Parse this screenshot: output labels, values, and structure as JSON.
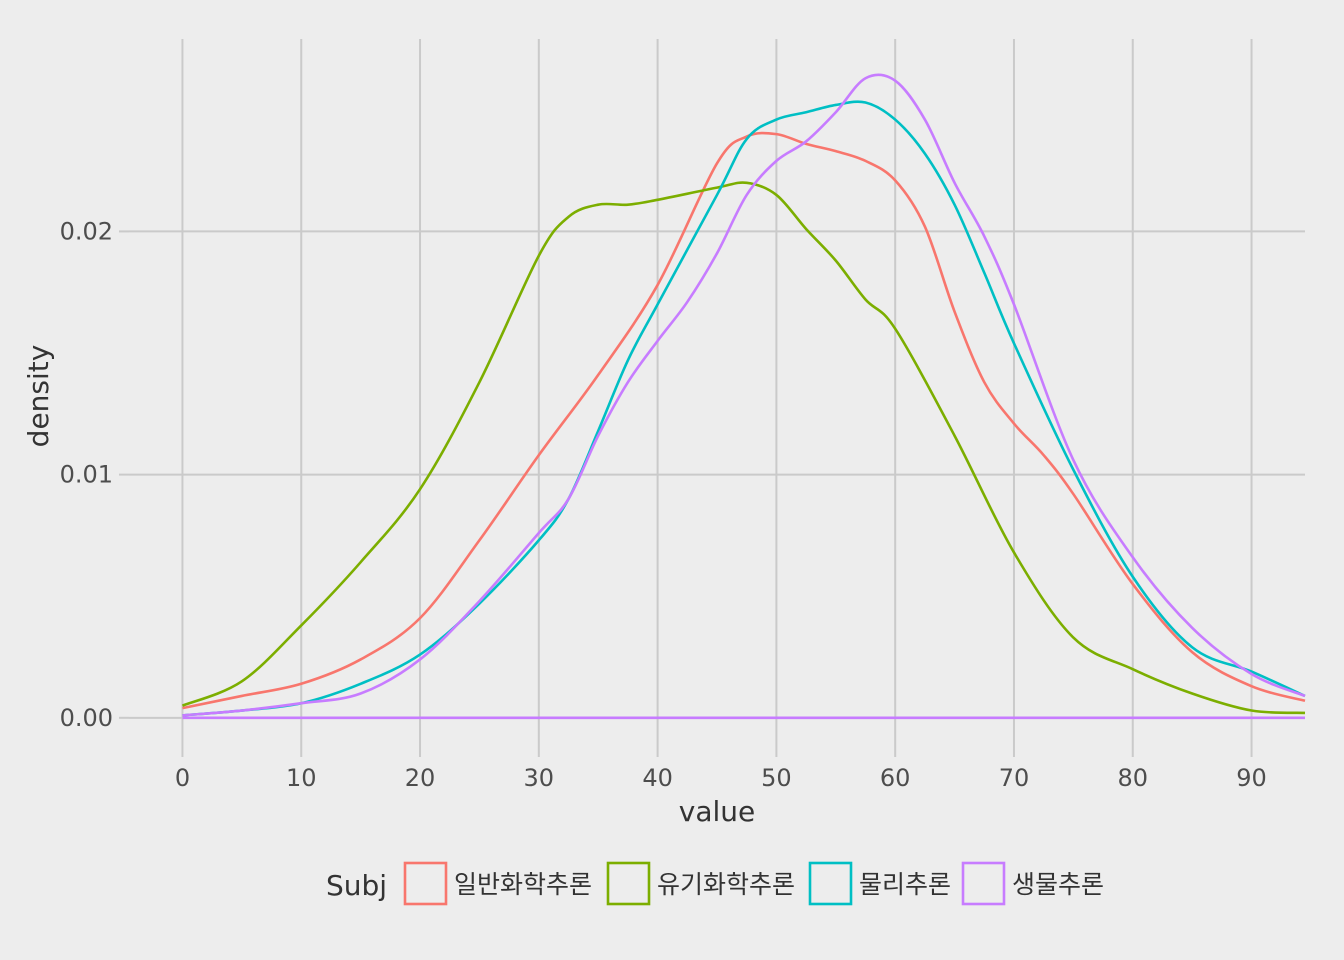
{
  "chart_data": {
    "type": "line",
    "kind": "density",
    "xlabel": "value",
    "ylabel": "density",
    "xlim": [
      -4.5,
      94.5
    ],
    "ylim": [
      -0.0012,
      0.0282
    ],
    "x_ticks": [
      0,
      10,
      20,
      30,
      40,
      50,
      60,
      70,
      80,
      90
    ],
    "x_tick_labels": [
      "0",
      "10",
      "20",
      "30",
      "40",
      "50",
      "60",
      "70",
      "80",
      "90"
    ],
    "y_ticks": [
      0,
      0.01,
      0.02
    ],
    "y_tick_labels": [
      "0.00",
      "0.01",
      "0.02"
    ],
    "grid": true,
    "baseline_color": "#c77cff",
    "legend": {
      "title": "Subj",
      "position": "bottom"
    },
    "series": [
      {
        "name": "일반화학추론",
        "color": "#f8766d",
        "points": [
          [
            0,
            0.0004
          ],
          [
            5,
            0.0009
          ],
          [
            10,
            0.0014
          ],
          [
            15,
            0.0024
          ],
          [
            20,
            0.0041
          ],
          [
            25,
            0.0073
          ],
          [
            30,
            0.0108
          ],
          [
            35,
            0.0141
          ],
          [
            40,
            0.0178
          ],
          [
            45,
            0.0228
          ],
          [
            47.5,
            0.0239
          ],
          [
            50,
            0.024
          ],
          [
            52.5,
            0.0236
          ],
          [
            55,
            0.0233
          ],
          [
            57.5,
            0.0229
          ],
          [
            60,
            0.0221
          ],
          [
            62.5,
            0.0202
          ],
          [
            65,
            0.0167
          ],
          [
            67.5,
            0.0138
          ],
          [
            70,
            0.0121
          ],
          [
            72.5,
            0.0108
          ],
          [
            75,
            0.0092
          ],
          [
            80,
            0.0055
          ],
          [
            85,
            0.0027
          ],
          [
            90,
            0.0013
          ],
          [
            94.5,
            0.0007
          ]
        ]
      },
      {
        "name": "유기화학추론",
        "color": "#7cae00",
        "points": [
          [
            0,
            0.0005
          ],
          [
            5,
            0.0015
          ],
          [
            10,
            0.0038
          ],
          [
            15,
            0.0064
          ],
          [
            20,
            0.0094
          ],
          [
            25,
            0.0138
          ],
          [
            30,
            0.019
          ],
          [
            32.5,
            0.0206
          ],
          [
            35,
            0.0211
          ],
          [
            37.5,
            0.0211
          ],
          [
            40,
            0.0213
          ],
          [
            45,
            0.0218
          ],
          [
            47.5,
            0.022
          ],
          [
            50,
            0.0215
          ],
          [
            52.5,
            0.0201
          ],
          [
            55,
            0.0188
          ],
          [
            57.5,
            0.0172
          ],
          [
            60,
            0.016
          ],
          [
            65,
            0.0116
          ],
          [
            70,
            0.0068
          ],
          [
            75,
            0.0033
          ],
          [
            80,
            0.002
          ],
          [
            85,
            0.001
          ],
          [
            90,
            0.0003
          ],
          [
            94.5,
            0.0002
          ]
        ]
      },
      {
        "name": "물리추론",
        "color": "#00bfc4",
        "points": [
          [
            0,
            0.0001
          ],
          [
            5,
            0.0003
          ],
          [
            10,
            0.0006
          ],
          [
            15,
            0.0014
          ],
          [
            20,
            0.0026
          ],
          [
            25,
            0.0047
          ],
          [
            30,
            0.0073
          ],
          [
            32.5,
            0.009
          ],
          [
            35,
            0.0118
          ],
          [
            37.5,
            0.0147
          ],
          [
            40,
            0.017
          ],
          [
            45,
            0.0215
          ],
          [
            47.5,
            0.0238
          ],
          [
            50,
            0.0246
          ],
          [
            52.5,
            0.0249
          ],
          [
            55,
            0.0252
          ],
          [
            57.5,
            0.0253
          ],
          [
            60,
            0.0246
          ],
          [
            62.5,
            0.0232
          ],
          [
            65,
            0.0211
          ],
          [
            67.5,
            0.0183
          ],
          [
            70,
            0.0154
          ],
          [
            75,
            0.0102
          ],
          [
            80,
            0.0058
          ],
          [
            85,
            0.0029
          ],
          [
            90,
            0.0019
          ],
          [
            94.5,
            0.0009
          ]
        ]
      },
      {
        "name": "생물추론",
        "color": "#c77cff",
        "points": [
          [
            0,
            0.0001
          ],
          [
            5,
            0.0003
          ],
          [
            10,
            0.0006
          ],
          [
            15,
            0.001
          ],
          [
            20,
            0.0024
          ],
          [
            25,
            0.0048
          ],
          [
            30,
            0.0076
          ],
          [
            32.5,
            0.009
          ],
          [
            35,
            0.0116
          ],
          [
            37.5,
            0.0138
          ],
          [
            40,
            0.0155
          ],
          [
            42.5,
            0.0171
          ],
          [
            45,
            0.0191
          ],
          [
            47.5,
            0.0215
          ],
          [
            50,
            0.0229
          ],
          [
            52.5,
            0.0237
          ],
          [
            55,
            0.0249
          ],
          [
            57.5,
            0.0263
          ],
          [
            60,
            0.0262
          ],
          [
            62.5,
            0.0246
          ],
          [
            65,
            0.022
          ],
          [
            67.5,
            0.0198
          ],
          [
            70,
            0.017
          ],
          [
            75,
            0.0106
          ],
          [
            80,
            0.0066
          ],
          [
            85,
            0.0037
          ],
          [
            90,
            0.0018
          ],
          [
            94.5,
            0.0009
          ]
        ]
      }
    ]
  }
}
